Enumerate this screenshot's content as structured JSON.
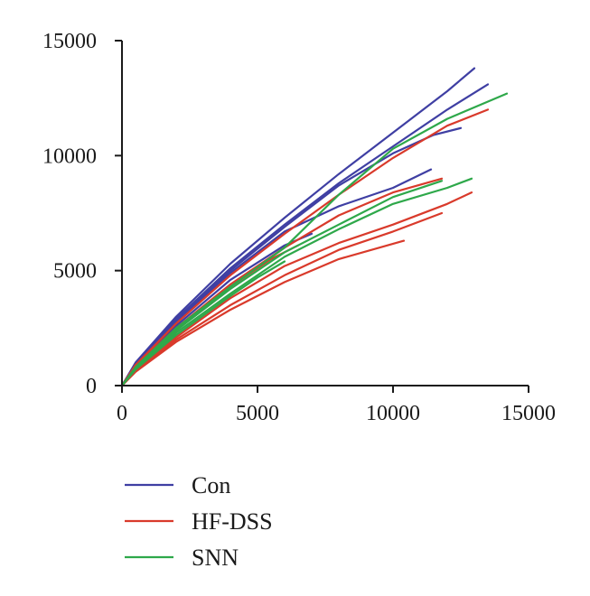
{
  "chart_data": {
    "type": "line",
    "title": "",
    "xlabel": "",
    "ylabel": "",
    "xlim": [
      0,
      15000
    ],
    "ylim": [
      0,
      15000
    ],
    "x_ticks": [
      0,
      5000,
      10000,
      15000
    ],
    "y_ticks": [
      0,
      5000,
      10000,
      15000
    ],
    "grid": false,
    "legend_position": "bottom-left",
    "legend": [
      {
        "label": "Con",
        "color": "#3f3fa3"
      },
      {
        "label": "HF-DSS",
        "color": "#d93a2b"
      },
      {
        "label": "SNN",
        "color": "#2ea84a"
      }
    ],
    "groups": [
      {
        "group": "Con",
        "color": "#3f3fa3",
        "curves": [
          {
            "x": [
              0,
              500,
              2000,
              4000,
              6000,
              8000,
              10000,
              12000,
              13000
            ],
            "y": [
              0,
              1000,
              3000,
              5300,
              7300,
              9200,
              11000,
              12800,
              13800
            ]
          },
          {
            "x": [
              0,
              500,
              2000,
              4000,
              6000,
              8000,
              10000,
              12000,
              13500
            ],
            "y": [
              0,
              950,
              2900,
              5100,
              7000,
              8800,
              10400,
              12000,
              13100
            ]
          },
          {
            "x": [
              0,
              500,
              2000,
              4000,
              6000,
              8000,
              10000,
              11500,
              12500
            ],
            "y": [
              0,
              900,
              2800,
              5000,
              6900,
              8700,
              10100,
              10900,
              11200
            ]
          },
          {
            "x": [
              0,
              500,
              2000,
              4000,
              6000,
              8000,
              10000,
              11400
            ],
            "y": [
              0,
              900,
              2700,
              4900,
              6700,
              7800,
              8600,
              9400
            ]
          },
          {
            "x": [
              0,
              500,
              2000,
              4000,
              6000,
              7000
            ],
            "y": [
              0,
              850,
              2600,
              4600,
              6100,
              6600
            ]
          }
        ]
      },
      {
        "group": "HF-DSS",
        "color": "#d93a2b",
        "curves": [
          {
            "x": [
              0,
              500,
              2000,
              4000,
              6000,
              8000,
              10000,
              12000,
              13500
            ],
            "y": [
              0,
              900,
              2700,
              4800,
              6600,
              8300,
              9900,
              11300,
              12000
            ]
          },
          {
            "x": [
              0,
              500,
              2000,
              4000,
              6000,
              8000,
              10000,
              11800
            ],
            "y": [
              0,
              850,
              2500,
              4400,
              6000,
              7400,
              8400,
              9000
            ]
          },
          {
            "x": [
              0,
              500,
              2000,
              4000,
              6000,
              8000,
              10000,
              12000,
              12900
            ],
            "y": [
              0,
              650,
              2100,
              3800,
              5200,
              6200,
              7000,
              7900,
              8400
            ]
          },
          {
            "x": [
              0,
              500,
              2000,
              4000,
              6000,
              8000,
              10000,
              11800
            ],
            "y": [
              0,
              600,
              2000,
              3500,
              4800,
              5900,
              6700,
              7500
            ]
          },
          {
            "x": [
              0,
              500,
              2000,
              4000,
              6000,
              8000,
              10400
            ],
            "y": [
              0,
              600,
              1900,
              3300,
              4500,
              5500,
              6300
            ]
          },
          {
            "x": [
              0,
              500,
              2000,
              4000,
              5500,
              6500
            ],
            "y": [
              0,
              750,
              2400,
              4300,
              5500,
              6100
            ]
          }
        ]
      },
      {
        "group": "SNN",
        "color": "#2ea84a",
        "curves": [
          {
            "x": [
              0,
              500,
              2000,
              4000,
              6000,
              8000,
              10000,
              12000,
              14200
            ],
            "y": [
              0,
              800,
              2500,
              4300,
              6000,
              8300,
              10300,
              11600,
              12700
            ]
          },
          {
            "x": [
              0,
              500,
              2000,
              4000,
              6000,
              8000,
              10000,
              11800
            ],
            "y": [
              0,
              750,
              2400,
              4200,
              5800,
              7000,
              8200,
              8900
            ]
          },
          {
            "x": [
              0,
              500,
              2000,
              4000,
              6000,
              8000,
              10000,
              12000,
              12900
            ],
            "y": [
              0,
              750,
              2300,
              4000,
              5600,
              6800,
              7900,
              8600,
              9000
            ]
          },
          {
            "x": [
              0,
              500,
              2000,
              4000,
              5000,
              6000
            ],
            "y": [
              0,
              700,
              2200,
              3900,
              4700,
              5400
            ]
          }
        ]
      }
    ]
  }
}
